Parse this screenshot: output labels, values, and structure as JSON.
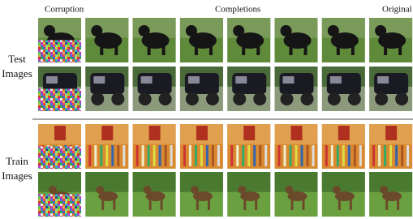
{
  "header": {
    "corruption": "Corruption",
    "completions": "Completions",
    "original": "Original"
  },
  "groups": [
    {
      "line1": "Test",
      "line2": "Images"
    },
    {
      "line1": "Train",
      "line2": "Images"
    }
  ]
}
